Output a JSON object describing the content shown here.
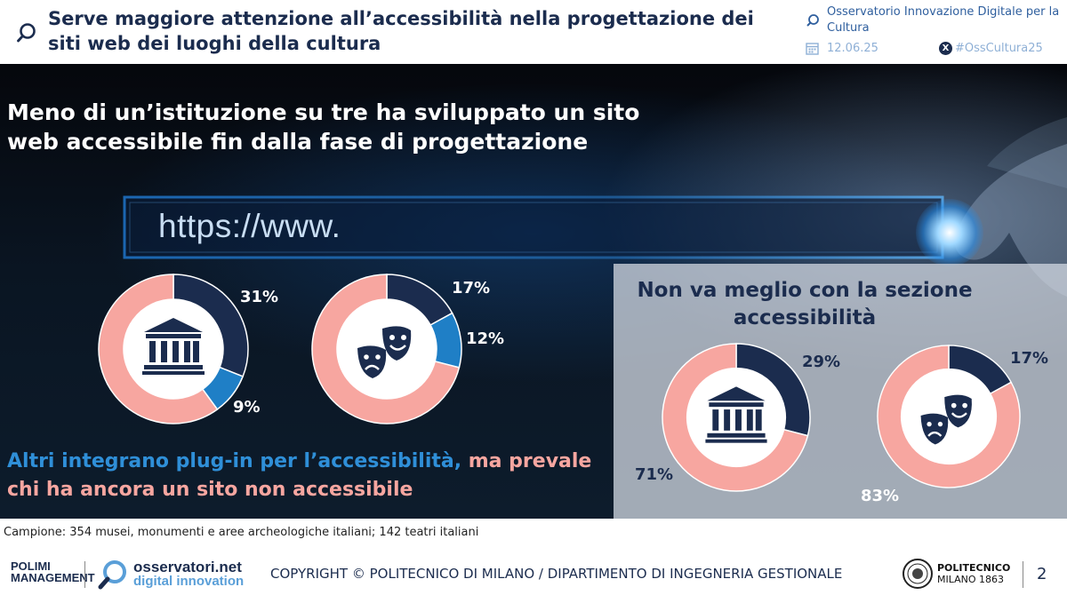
{
  "header": {
    "title": "Serve maggiore attenzione all’accessibilità nella progettazione dei siti web dei luoghi della cultura",
    "org": "Osservatorio Innovazione Digitale per la Cultura",
    "date": "12.06.25",
    "hashtag": "#OssCultura25"
  },
  "main": {
    "headline": "Meno di un’istituzione su tre ha sviluppato un sito web accessibile fin dalla fase di progettazione",
    "url_text": "https://www.",
    "bottom_blue": "Altri integrano plug-in per l’accessibilità,",
    "bottom_pink": " ma prevale chi ha ancora un sito non accessibile",
    "box_title": "Non va meglio con la sezione accessibilità"
  },
  "colors": {
    "dark_navy": "#1b2c4e",
    "medium_blue": "#1f7fc6",
    "salmon": "#f7a6a0",
    "headline_blue": "#2f8fd8"
  },
  "chart_data": [
    {
      "type": "pie",
      "subject": "musei-icon",
      "values": [
        31,
        9,
        60
      ],
      "colors": [
        "#1b2c4e",
        "#1f7fc6",
        "#f7a6a0"
      ],
      "labels": [
        "31%",
        "9%",
        ""
      ]
    },
    {
      "type": "pie",
      "subject": "theatre-icon",
      "values": [
        17,
        12,
        71
      ],
      "colors": [
        "#1b2c4e",
        "#1f7fc6",
        "#f7a6a0"
      ],
      "labels": [
        "17%",
        "12%",
        ""
      ]
    },
    {
      "type": "pie",
      "subject": "musei-icon",
      "values": [
        29,
        71
      ],
      "colors": [
        "#1b2c4e",
        "#f7a6a0"
      ],
      "labels": [
        "29%",
        "71%"
      ]
    },
    {
      "type": "pie",
      "subject": "theatre-icon",
      "values": [
        17,
        83
      ],
      "colors": [
        "#1b2c4e",
        "#f7a6a0"
      ],
      "labels": [
        "17%",
        "83%"
      ]
    }
  ],
  "footer": {
    "sample": "Campione: 354 musei, monumenti e aree archeologiche italiani; 142 teatri italiani",
    "polimi_mgmt": "POLIMI MANAGEMENT",
    "oss_name": "osservatori.net",
    "oss_sub": "digital innovation",
    "copyright": "COPYRIGHT © POLITECNICO DI MILANO / DIPARTIMENTO DI INGEGNERIA GESTIONALE",
    "poli_name": "POLITECNICO",
    "poli_sub": "MILANO 1863",
    "page_number": "2"
  }
}
